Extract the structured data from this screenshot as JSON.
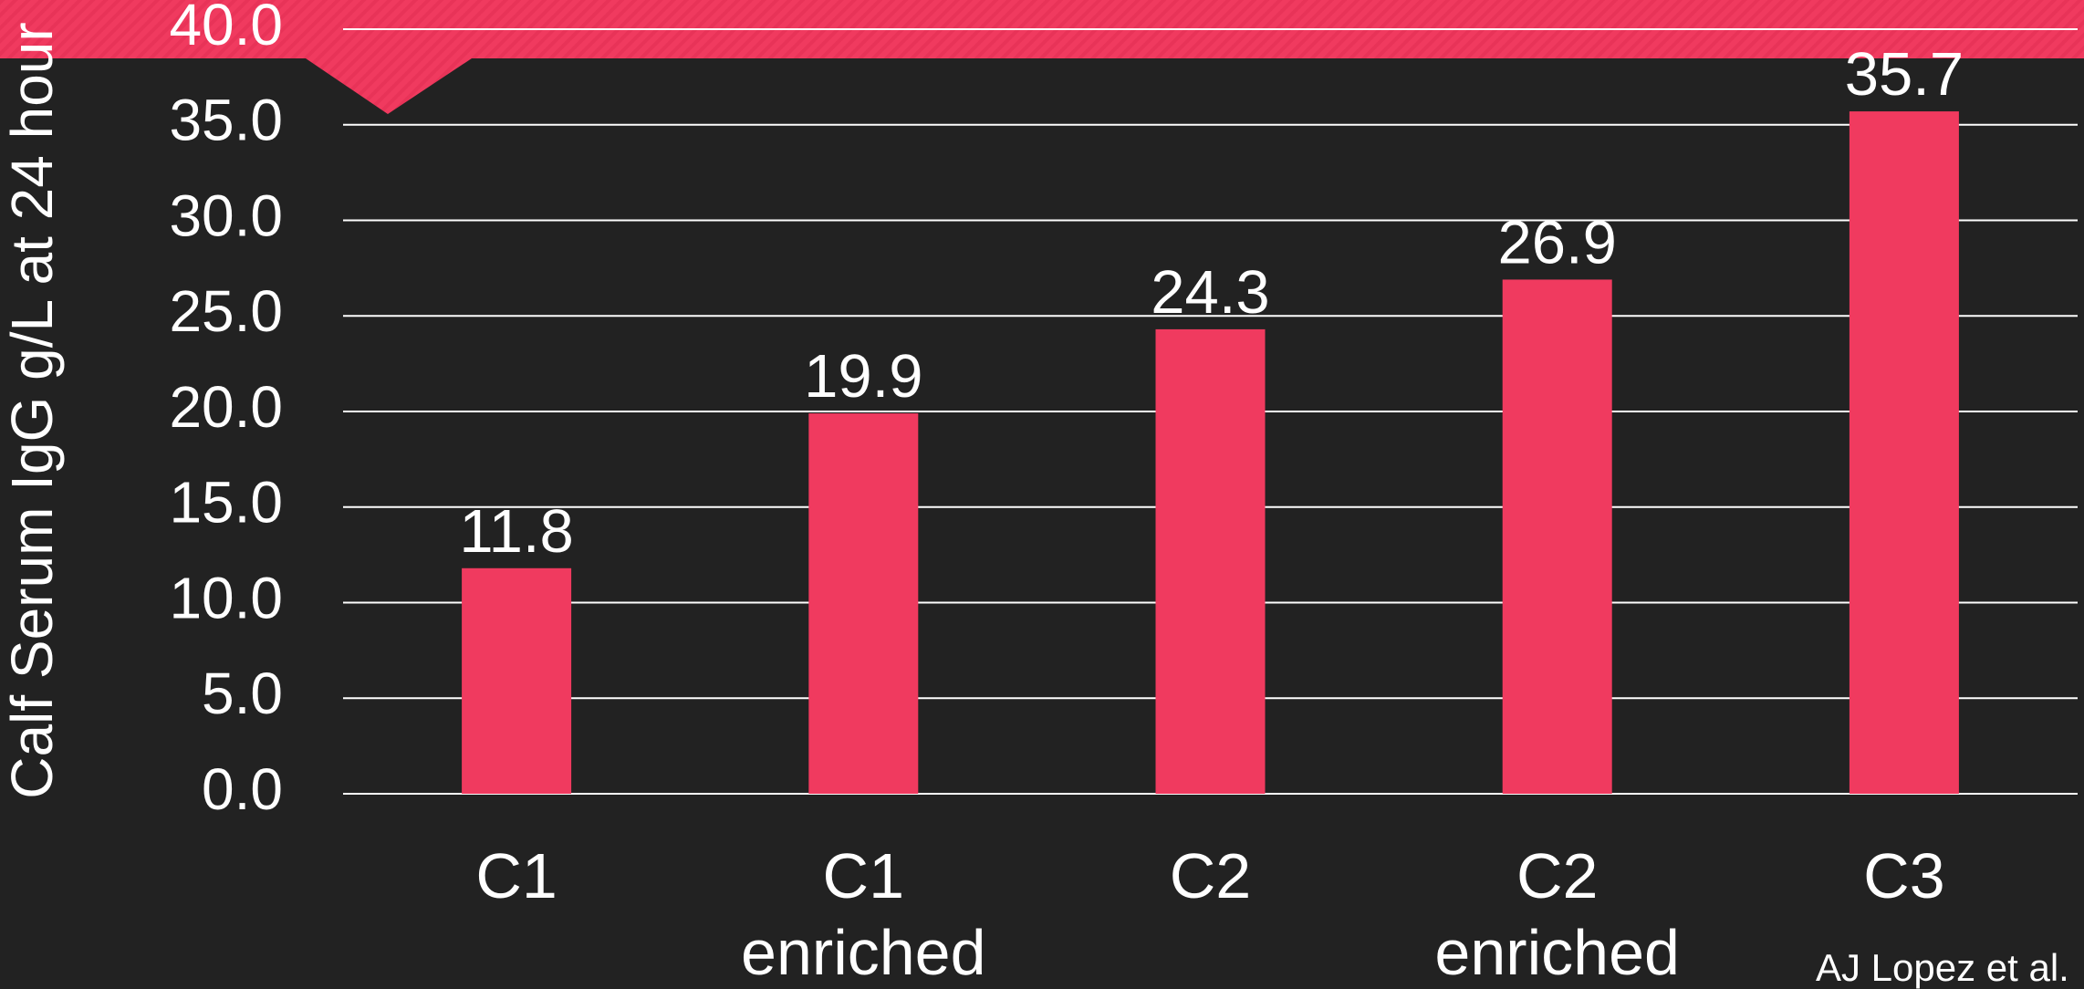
{
  "chart_data": {
    "type": "bar",
    "y_label": "Calf Serum IgG g/L at 24 hour",
    "categories": [
      "C1",
      "C1 enriched",
      "C2",
      "C2 enriched",
      "C3"
    ],
    "values": [
      11.8,
      19.9,
      24.3,
      26.9,
      35.7
    ],
    "color": "#f03a5f",
    "ylim": [
      0,
      40
    ],
    "yticks": [
      {
        "value": 0,
        "label": "0.0"
      },
      {
        "value": 5,
        "label": "5.0"
      },
      {
        "value": 10,
        "label": "10.0"
      },
      {
        "value": 15,
        "label": "15.0"
      },
      {
        "value": 20,
        "label": "20.0"
      },
      {
        "value": 25,
        "label": "25.0"
      },
      {
        "value": 30,
        "label": "30.0"
      },
      {
        "value": 35,
        "label": "35.0"
      },
      {
        "value": 40,
        "label": "40.0"
      }
    ],
    "grid": true,
    "source": "AJ Lopez et al."
  }
}
